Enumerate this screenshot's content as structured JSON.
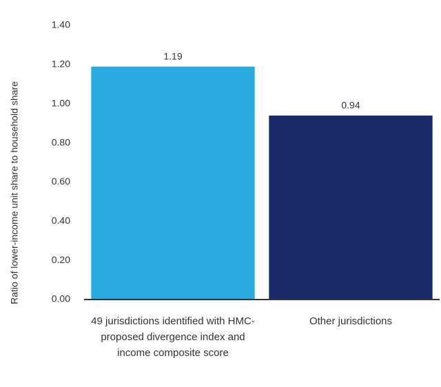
{
  "chart_data": {
    "type": "bar",
    "y_label": "Ratio of lower-income unit share to household share",
    "categories": [
      "49 jurisdictions identified with HMC-proposed divergence index and income composite score",
      "Other jurisdictions"
    ],
    "values": [
      1.19,
      0.94
    ],
    "colors": [
      "#29abe2",
      "#1b2a6b"
    ],
    "ylim": [
      0,
      1.4
    ],
    "yticks": [
      {
        "value": 0,
        "label": "0.00"
      },
      {
        "value": 0.2,
        "label": "0.20"
      },
      {
        "value": 0.4,
        "label": "0.40"
      },
      {
        "value": 0.6,
        "label": "0.60"
      },
      {
        "value": 0.8,
        "label": "0.80"
      },
      {
        "value": 1,
        "label": "1.00"
      },
      {
        "value": 1.2,
        "label": "1.20"
      },
      {
        "value": 1.4,
        "label": "1.40"
      }
    ],
    "grid": false
  }
}
